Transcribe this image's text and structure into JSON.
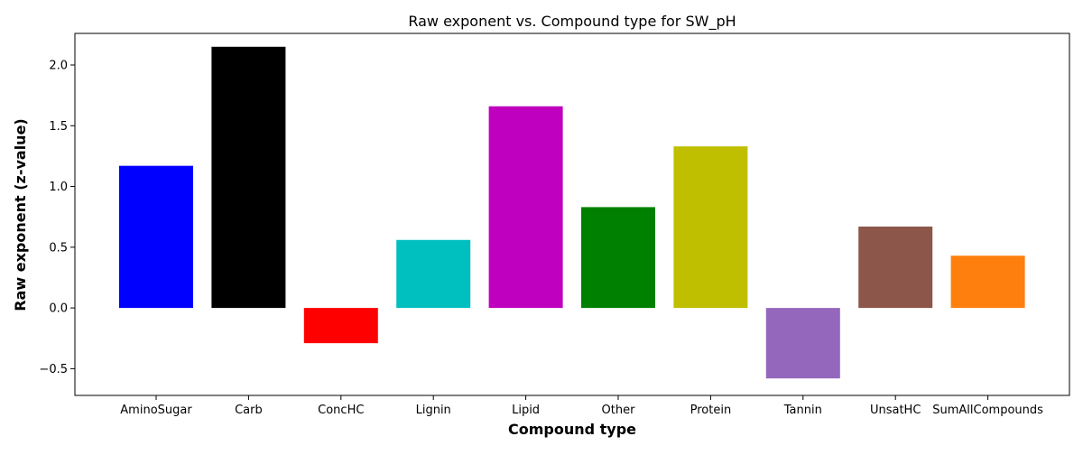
{
  "chart_data": {
    "type": "bar",
    "title": "Raw exponent vs. Compound type for SW_pH",
    "xlabel": "Compound type",
    "ylabel": "Raw exponent (z-value)",
    "categories": [
      "AminoSugar",
      "Carb",
      "ConcHC",
      "Lignin",
      "Lipid",
      "Other",
      "Protein",
      "Tannin",
      "UnsatHC",
      "SumAllCompounds"
    ],
    "values": [
      1.17,
      2.15,
      -0.29,
      0.56,
      1.66,
      0.83,
      1.33,
      -0.58,
      0.67,
      0.43
    ],
    "colors": [
      "#0000ff",
      "#000000",
      "#ff0000",
      "#00bfbf",
      "#bf00bf",
      "#008000",
      "#bfbf00",
      "#9467bd",
      "#8c564b",
      "#ff7f0e"
    ],
    "yticks": [
      -0.5,
      0.0,
      0.5,
      1.0,
      1.5,
      2.0
    ],
    "ytick_labels": [
      "−0.5",
      "0.0",
      "0.5",
      "1.0",
      "1.5",
      "2.0"
    ],
    "ylim": [
      -0.72,
      2.26
    ],
    "grid": false
  }
}
